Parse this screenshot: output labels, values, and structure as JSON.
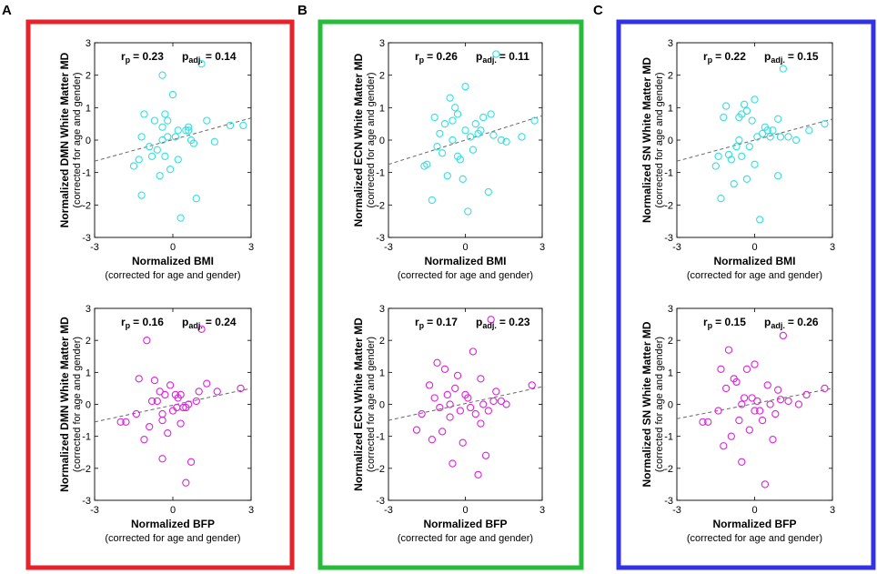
{
  "figure": {
    "panels": [
      {
        "id": "A",
        "letter": "A",
        "color": "#e8222a",
        "network": "DMN"
      },
      {
        "id": "B",
        "letter": "B",
        "color": "#27bb3a",
        "network": "ECN"
      },
      {
        "id": "C",
        "letter": "C",
        "color": "#3131e8",
        "network": "SN"
      }
    ],
    "colors": {
      "bmi_points": "#33e0e0",
      "bfp_points": "#dd22dd",
      "fit_line": "#666666"
    }
  },
  "chart_data": [
    {
      "type": "scatter",
      "panel": "A",
      "row": "BMI",
      "ylabel": "Normalized DMN White Matter MD",
      "ylabel_sub": "(corrected for age and gender)",
      "xlabel": "Normalized BMI",
      "xlabel_sub": "(corrected for age and gender)",
      "r_label": "r",
      "r_sub": "p",
      "r_value": "= 0.23",
      "p_label": "p",
      "p_sub": "adj.",
      "p_value": "= 0.14",
      "xlim": [
        -3,
        3
      ],
      "ylim": [
        -3,
        3
      ],
      "xticks": [
        "-3",
        "0",
        "3"
      ],
      "yticks": [
        "3",
        "2",
        "1",
        "0",
        "-1",
        "-2",
        "-3"
      ],
      "fit": [
        [
          -3,
          -0.65
        ],
        [
          3,
          0.68
        ]
      ],
      "points": [
        [
          -1.5,
          -0.8
        ],
        [
          -1.3,
          -0.6
        ],
        [
          -1.2,
          0.1
        ],
        [
          -1.1,
          0.8
        ],
        [
          -1.2,
          -1.7
        ],
        [
          -0.9,
          -0.2
        ],
        [
          -0.8,
          -0.5
        ],
        [
          -0.7,
          0.6
        ],
        [
          -0.6,
          -0.3
        ],
        [
          -0.5,
          -1.1
        ],
        [
          -0.4,
          0.0
        ],
        [
          -0.4,
          0.4
        ],
        [
          -0.3,
          0.8
        ],
        [
          -0.2,
          0.6
        ],
        [
          -0.3,
          -0.5
        ],
        [
          -0.2,
          0.1
        ],
        [
          -0.1,
          -0.9
        ],
        [
          -0.4,
          2.0
        ],
        [
          0.0,
          1.4
        ],
        [
          0.1,
          0.1
        ],
        [
          0.2,
          0.3
        ],
        [
          0.2,
          -0.6
        ],
        [
          0.3,
          -2.4
        ],
        [
          0.5,
          0.3
        ],
        [
          0.6,
          0.4
        ],
        [
          0.6,
          0.3
        ],
        [
          0.7,
          0.0
        ],
        [
          0.8,
          -0.1
        ],
        [
          0.9,
          -1.8
        ],
        [
          1.1,
          2.35
        ],
        [
          1.3,
          0.6
        ],
        [
          1.6,
          -0.05
        ],
        [
          2.2,
          0.45
        ],
        [
          2.7,
          0.45
        ]
      ]
    },
    {
      "type": "scatter",
      "panel": "A",
      "row": "BFP",
      "ylabel": "Normalized DMN White Matter MD",
      "ylabel_sub": "(corrected for age and gender)",
      "xlabel": "Normalized BFP",
      "xlabel_sub": "(corrected for age and gender)",
      "r_label": "r",
      "r_sub": "p",
      "r_value": "= 0.16",
      "p_label": "p",
      "p_sub": "adj.",
      "p_value": "= 0.24",
      "xlim": [
        -3,
        3
      ],
      "ylim": [
        -3,
        3
      ],
      "xticks": [
        "-3",
        "0",
        "3"
      ],
      "yticks": [
        "3",
        "2",
        "1",
        "0",
        "-1",
        "-2",
        "-3"
      ],
      "fit": [
        [
          -3,
          -0.55
        ],
        [
          3,
          0.5
        ]
      ],
      "points": [
        [
          -2.0,
          -0.55
        ],
        [
          -1.8,
          -0.55
        ],
        [
          -1.4,
          -0.3
        ],
        [
          -1.3,
          0.8
        ],
        [
          -1.1,
          -1.1
        ],
        [
          -1.0,
          2.0
        ],
        [
          -0.9,
          -0.7
        ],
        [
          -0.8,
          0.1
        ],
        [
          -0.7,
          0.75
        ],
        [
          -0.6,
          0.1
        ],
        [
          -0.5,
          0.4
        ],
        [
          -0.4,
          -0.3
        ],
        [
          -0.4,
          -0.5
        ],
        [
          -0.4,
          -1.7
        ],
        [
          -0.3,
          0.3
        ],
        [
          -0.2,
          -0.9
        ],
        [
          -0.1,
          0.6
        ],
        [
          0.0,
          -0.2
        ],
        [
          0.1,
          0.3
        ],
        [
          0.15,
          -0.1
        ],
        [
          0.2,
          0.2
        ],
        [
          0.3,
          0.3
        ],
        [
          0.3,
          -0.6
        ],
        [
          0.4,
          -0.1
        ],
        [
          0.5,
          -0.1
        ],
        [
          0.5,
          -2.45
        ],
        [
          0.6,
          0.0
        ],
        [
          0.7,
          -1.8
        ],
        [
          0.9,
          0.1
        ],
        [
          1.0,
          0.4
        ],
        [
          1.1,
          2.35
        ],
        [
          1.3,
          0.65
        ],
        [
          1.7,
          0.4
        ],
        [
          2.6,
          0.5
        ]
      ]
    },
    {
      "type": "scatter",
      "panel": "B",
      "row": "BMI",
      "ylabel": "Normalized ECN White Matter MD",
      "ylabel_sub": "(corrected for age and gender)",
      "xlabel": "Normalized BMI",
      "xlabel_sub": "(corrected for age and gender)",
      "r_label": "r",
      "r_sub": "p",
      "r_value": "= 0.26",
      "p_label": "p",
      "p_sub": "adj.",
      "p_value": "= 0.11",
      "xlim": [
        -3,
        3
      ],
      "ylim": [
        -3,
        3
      ],
      "xticks": [
        "-3",
        "0",
        "3"
      ],
      "yticks": [
        "3",
        "2",
        "1",
        "0",
        "-1",
        "-2",
        "-3"
      ],
      "fit": [
        [
          -3,
          -0.75
        ],
        [
          3,
          0.75
        ]
      ],
      "points": [
        [
          -1.6,
          -0.8
        ],
        [
          -1.5,
          -0.75
        ],
        [
          -1.3,
          -1.85
        ],
        [
          -1.2,
          0.7
        ],
        [
          -1.1,
          -0.2
        ],
        [
          -1.0,
          0.2
        ],
        [
          -0.9,
          -0.4
        ],
        [
          -0.8,
          0.5
        ],
        [
          -0.7,
          -1.1
        ],
        [
          -0.6,
          1.3
        ],
        [
          -0.5,
          0.6
        ],
        [
          -0.5,
          0.0
        ],
        [
          -0.4,
          1.0
        ],
        [
          -0.3,
          0.8
        ],
        [
          -0.3,
          -0.5
        ],
        [
          -0.2,
          -0.6
        ],
        [
          -0.1,
          -1.2
        ],
        [
          0.0,
          0.3
        ],
        [
          0.0,
          1.65
        ],
        [
          0.1,
          -2.2
        ],
        [
          0.2,
          0.1
        ],
        [
          0.3,
          -0.3
        ],
        [
          0.4,
          0.5
        ],
        [
          0.5,
          0.2
        ],
        [
          0.6,
          0.3
        ],
        [
          0.7,
          0.7
        ],
        [
          0.9,
          -1.6
        ],
        [
          1.0,
          0.8
        ],
        [
          1.1,
          0.15
        ],
        [
          1.2,
          2.65
        ],
        [
          1.4,
          0.0
        ],
        [
          1.6,
          -0.05
        ],
        [
          2.2,
          0.1
        ],
        [
          2.7,
          0.6
        ]
      ]
    },
    {
      "type": "scatter",
      "panel": "B",
      "row": "BFP",
      "ylabel": "Normalized ECN White Matter MD",
      "ylabel_sub": "(corrected for age and gender)",
      "xlabel": "Normalized BFP",
      "xlabel_sub": "(corrected for age and gender)",
      "r_label": "r",
      "r_sub": "p",
      "r_value": "= 0.17",
      "p_label": "p",
      "p_sub": "adj.",
      "p_value": "= 0.23",
      "xlim": [
        -3,
        3
      ],
      "ylim": [
        -3,
        3
      ],
      "xticks": [
        "-3",
        "0",
        "3"
      ],
      "yticks": [
        "3",
        "2",
        "1",
        "0",
        "-1",
        "-2",
        "-3"
      ],
      "fit": [
        [
          -3,
          -0.5
        ],
        [
          3,
          0.55
        ]
      ],
      "points": [
        [
          -1.9,
          -0.8
        ],
        [
          -1.7,
          -0.3
        ],
        [
          -1.4,
          0.6
        ],
        [
          -1.3,
          -1.1
        ],
        [
          -1.2,
          0.2
        ],
        [
          -1.1,
          1.3
        ],
        [
          -1.0,
          -0.1
        ],
        [
          -0.9,
          -0.85
        ],
        [
          -0.8,
          1.1
        ],
        [
          -0.7,
          0.3
        ],
        [
          -0.6,
          -0.4
        ],
        [
          -0.6,
          0.0
        ],
        [
          -0.5,
          -1.85
        ],
        [
          -0.4,
          0.5
        ],
        [
          -0.3,
          0.9
        ],
        [
          -0.2,
          -0.2
        ],
        [
          -0.1,
          -1.2
        ],
        [
          0.0,
          0.3
        ],
        [
          0.1,
          0.2
        ],
        [
          0.2,
          -0.1
        ],
        [
          0.3,
          1.65
        ],
        [
          0.4,
          -0.3
        ],
        [
          0.5,
          -2.2
        ],
        [
          0.6,
          0.8
        ],
        [
          0.6,
          -0.6
        ],
        [
          0.7,
          0.0
        ],
        [
          0.8,
          -1.6
        ],
        [
          0.9,
          -0.2
        ],
        [
          1.0,
          2.65
        ],
        [
          1.1,
          0.1
        ],
        [
          1.2,
          0.4
        ],
        [
          1.4,
          0.1
        ],
        [
          1.6,
          0.0
        ],
        [
          2.6,
          0.6
        ]
      ]
    },
    {
      "type": "scatter",
      "panel": "C",
      "row": "BMI",
      "ylabel": "Normalized SN White Matter MD",
      "ylabel_sub": "(corrected for age and gender)",
      "xlabel": "Normalized BMI",
      "xlabel_sub": "(corrected for age and gender)",
      "r_label": "r",
      "r_sub": "p",
      "r_value": "= 0.22",
      "p_label": "p",
      "p_sub": "adj.",
      "p_value": "= 0.15",
      "xlim": [
        -3,
        3
      ],
      "ylim": [
        -3,
        3
      ],
      "xticks": [
        "-3",
        "0",
        "3"
      ],
      "yticks": [
        "3",
        "2",
        "1",
        "0",
        "-1",
        "-2",
        "-3"
      ],
      "fit": [
        [
          -3,
          -0.65
        ],
        [
          3,
          0.65
        ]
      ],
      "points": [
        [
          -1.5,
          -0.8
        ],
        [
          -1.4,
          -0.5
        ],
        [
          -1.3,
          -1.8
        ],
        [
          -1.2,
          0.7
        ],
        [
          -1.1,
          1.05
        ],
        [
          -1.0,
          -0.45
        ],
        [
          -0.9,
          -0.6
        ],
        [
          -0.8,
          -1.35
        ],
        [
          -0.7,
          -0.2
        ],
        [
          -0.6,
          0.7
        ],
        [
          -0.6,
          0.0
        ],
        [
          -0.5,
          0.8
        ],
        [
          -0.5,
          -0.5
        ],
        [
          -0.4,
          1.1
        ],
        [
          -0.3,
          -1.2
        ],
        [
          -0.3,
          0.9
        ],
        [
          -0.2,
          -0.2
        ],
        [
          -0.1,
          0.6
        ],
        [
          0.0,
          -0.75
        ],
        [
          0.0,
          1.25
        ],
        [
          0.1,
          0.1
        ],
        [
          0.2,
          -2.45
        ],
        [
          0.3,
          0.2
        ],
        [
          0.4,
          0.4
        ],
        [
          0.5,
          0.3
        ],
        [
          0.6,
          0.1
        ],
        [
          0.7,
          0.3
        ],
        [
          0.9,
          0.65
        ],
        [
          0.9,
          -1.1
        ],
        [
          1.0,
          0.1
        ],
        [
          1.1,
          2.2
        ],
        [
          1.3,
          0.1
        ],
        [
          1.6,
          0.0
        ],
        [
          2.1,
          0.3
        ],
        [
          2.7,
          0.5
        ]
      ]
    },
    {
      "type": "scatter",
      "panel": "C",
      "row": "BFP",
      "ylabel": "Normalized SN White Matter MD",
      "ylabel_sub": "(corrected for age and gender)",
      "xlabel": "Normalized BFP",
      "xlabel_sub": "(corrected for age and gender)",
      "r_label": "r",
      "r_sub": "p",
      "r_value": "= 0.15",
      "p_label": "p",
      "p_sub": "adj.",
      "p_value": "= 0.26",
      "xlim": [
        -3,
        3
      ],
      "ylim": [
        -3,
        3
      ],
      "xticks": [
        "-3",
        "0",
        "3"
      ],
      "yticks": [
        "3",
        "2",
        "1",
        "0",
        "-1",
        "-2",
        "-3"
      ],
      "fit": [
        [
          -3,
          -0.45
        ],
        [
          3,
          0.5
        ]
      ],
      "points": [
        [
          -2.0,
          -0.55
        ],
        [
          -1.8,
          -0.55
        ],
        [
          -1.4,
          -0.2
        ],
        [
          -1.3,
          1.1
        ],
        [
          -1.2,
          -1.3
        ],
        [
          -1.1,
          0.5
        ],
        [
          -1.0,
          1.7
        ],
        [
          -0.9,
          -1.0
        ],
        [
          -0.8,
          0.8
        ],
        [
          -0.7,
          0.7
        ],
        [
          -0.6,
          -0.5
        ],
        [
          -0.5,
          0.0
        ],
        [
          -0.5,
          -1.8
        ],
        [
          -0.4,
          0.2
        ],
        [
          -0.3,
          1.1
        ],
        [
          -0.2,
          -0.8
        ],
        [
          -0.1,
          0.2
        ],
        [
          0.0,
          -0.2
        ],
        [
          0.0,
          1.25
        ],
        [
          0.1,
          0.1
        ],
        [
          0.2,
          -0.2
        ],
        [
          0.3,
          -0.5
        ],
        [
          0.4,
          -2.5
        ],
        [
          0.5,
          0.6
        ],
        [
          0.6,
          0.0
        ],
        [
          0.7,
          -1.1
        ],
        [
          0.8,
          -0.3
        ],
        [
          0.9,
          0.45
        ],
        [
          1.0,
          0.15
        ],
        [
          1.1,
          2.15
        ],
        [
          1.3,
          0.1
        ],
        [
          1.7,
          0.0
        ],
        [
          2.0,
          0.3
        ],
        [
          2.7,
          0.5
        ]
      ]
    }
  ]
}
